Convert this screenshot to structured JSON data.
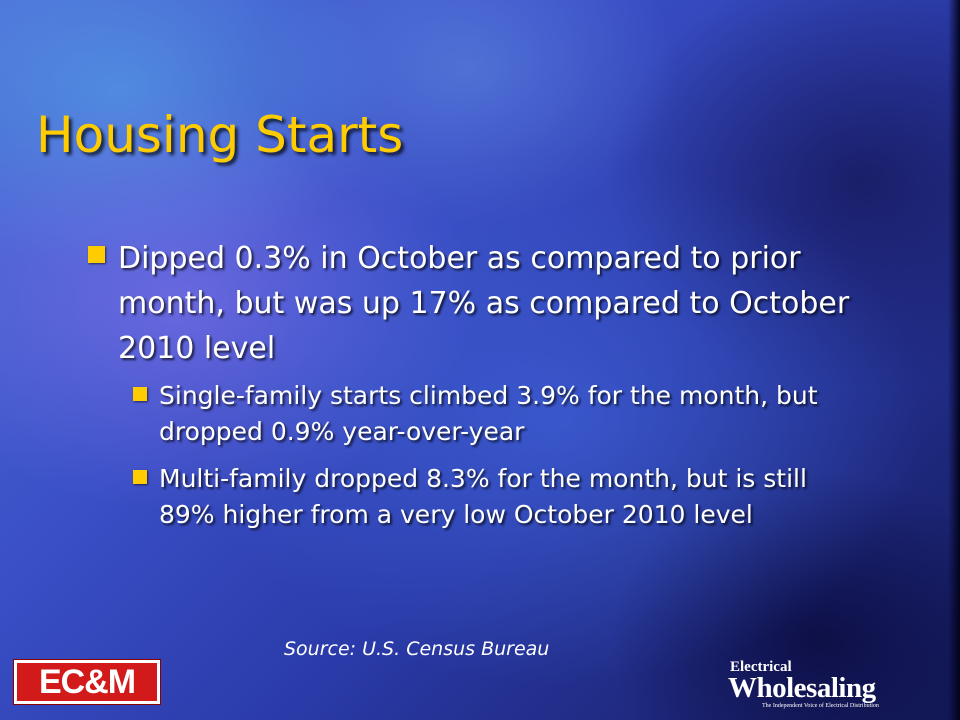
{
  "slide": {
    "title": "Housing Starts",
    "bullets": [
      {
        "text": "Dipped 0.3% in October as compared to prior month, but was up 17% as compared to October 2010 level",
        "sub": [
          {
            "text": "Single-family starts climbed 3.9% for the month, but dropped 0.9% year-over-year"
          },
          {
            "text": "Multi-family dropped 8.3% for the month, but is still 89% higher from a very low October 2010 level"
          }
        ]
      }
    ],
    "source": "Source: U.S. Census Bureau"
  },
  "logos": {
    "left": {
      "text": "EC&M",
      "color": "#d21a1a"
    },
    "right": {
      "line1": "Electrical",
      "line2": "Wholesaling",
      "tagline": "The Independent Voice of Electrical Distribution"
    }
  },
  "colors": {
    "title": "#ffcc00",
    "bullet": "#ffcc00",
    "text": "#ffffff",
    "background": "#3a4fc6"
  }
}
